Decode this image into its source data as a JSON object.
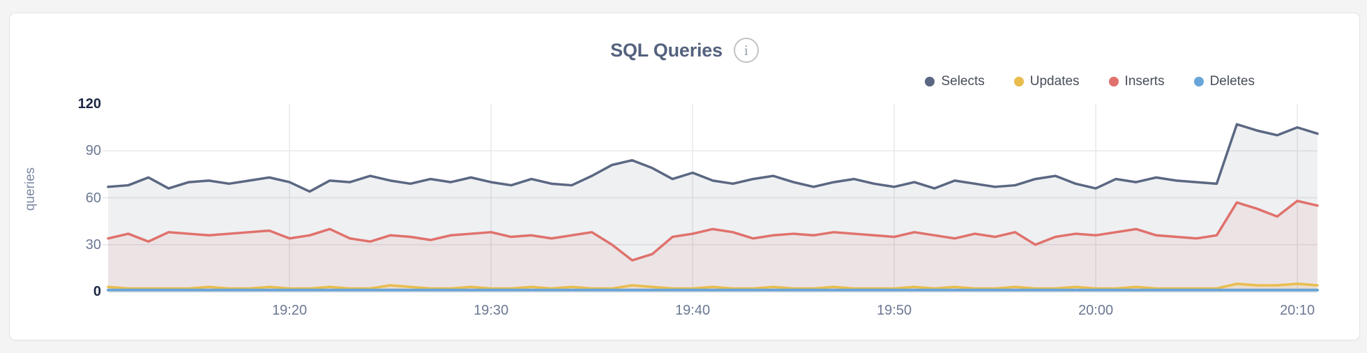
{
  "header": {
    "title": "SQL Queries",
    "info_glyph": "i"
  },
  "legend": {
    "items": [
      {
        "label": "Selects",
        "color": "#5b6782"
      },
      {
        "label": "Updates",
        "color": "#e8bd4e"
      },
      {
        "label": "Inserts",
        "color": "#e0716c"
      },
      {
        "label": "Deletes",
        "color": "#68a5d8"
      }
    ]
  },
  "chart_data": {
    "type": "area",
    "title": "SQL Queries",
    "ylabel": "queries",
    "ylim": [
      0,
      120
    ],
    "yticks": [
      120,
      90,
      60,
      30,
      0
    ],
    "grid_yvalues": [
      30,
      60,
      90
    ],
    "grid": true,
    "legend_position": "top-right",
    "x_start": "19:11",
    "x_step_minutes": 1,
    "xticks": [
      "19:20",
      "19:30",
      "19:40",
      "19:50",
      "20:00",
      "20:10"
    ],
    "x_tick_indices": [
      9,
      19,
      29,
      39,
      49,
      59
    ],
    "series": [
      {
        "name": "Selects",
        "color": "#5b6782",
        "fill_opacity": 0.1,
        "line_width": 3.5,
        "values": [
          67,
          68,
          73,
          66,
          70,
          71,
          69,
          71,
          73,
          70,
          64,
          71,
          70,
          74,
          71,
          69,
          72,
          70,
          73,
          70,
          68,
          72,
          69,
          68,
          74,
          81,
          84,
          79,
          72,
          76,
          71,
          69,
          72,
          74,
          70,
          67,
          70,
          72,
          69,
          67,
          70,
          66,
          71,
          69,
          67,
          68,
          72,
          74,
          69,
          66,
          72,
          70,
          73,
          71,
          70,
          69,
          107,
          103,
          100,
          105,
          101
        ]
      },
      {
        "name": "Inserts",
        "color": "#e0716c",
        "fill_opacity": 0.1,
        "line_width": 3.5,
        "values": [
          34,
          37,
          32,
          38,
          37,
          36,
          37,
          38,
          39,
          34,
          36,
          40,
          34,
          32,
          36,
          35,
          33,
          36,
          37,
          38,
          35,
          36,
          34,
          36,
          38,
          30,
          20,
          24,
          35,
          37,
          40,
          38,
          34,
          36,
          37,
          36,
          38,
          37,
          36,
          35,
          38,
          36,
          34,
          37,
          35,
          38,
          30,
          35,
          37,
          36,
          38,
          40,
          36,
          35,
          34,
          36,
          57,
          53,
          48,
          58,
          55
        ]
      },
      {
        "name": "Updates",
        "color": "#e8bd4e",
        "fill_opacity": 0.15,
        "line_width": 3.5,
        "values": [
          3,
          2,
          2,
          2,
          2,
          3,
          2,
          2,
          3,
          2,
          2,
          3,
          2,
          2,
          4,
          3,
          2,
          2,
          3,
          2,
          2,
          3,
          2,
          3,
          2,
          2,
          4,
          3,
          2,
          2,
          3,
          2,
          2,
          3,
          2,
          2,
          3,
          2,
          2,
          2,
          3,
          2,
          3,
          2,
          2,
          3,
          2,
          2,
          3,
          2,
          2,
          3,
          2,
          2,
          2,
          2,
          5,
          4,
          4,
          5,
          4
        ]
      },
      {
        "name": "Deletes",
        "color": "#68a5d8",
        "fill_opacity": 0,
        "line_width": 4,
        "values": [
          1,
          1,
          1,
          1,
          1,
          1,
          1,
          1,
          1,
          1,
          1,
          1,
          1,
          1,
          1,
          1,
          1,
          1,
          1,
          1,
          1,
          1,
          1,
          1,
          1,
          1,
          1,
          1,
          1,
          1,
          1,
          1,
          1,
          1,
          1,
          1,
          1,
          1,
          1,
          1,
          1,
          1,
          1,
          1,
          1,
          1,
          1,
          1,
          1,
          1,
          1,
          1,
          1,
          1,
          1,
          1,
          1,
          1,
          1,
          1,
          1
        ]
      }
    ]
  }
}
